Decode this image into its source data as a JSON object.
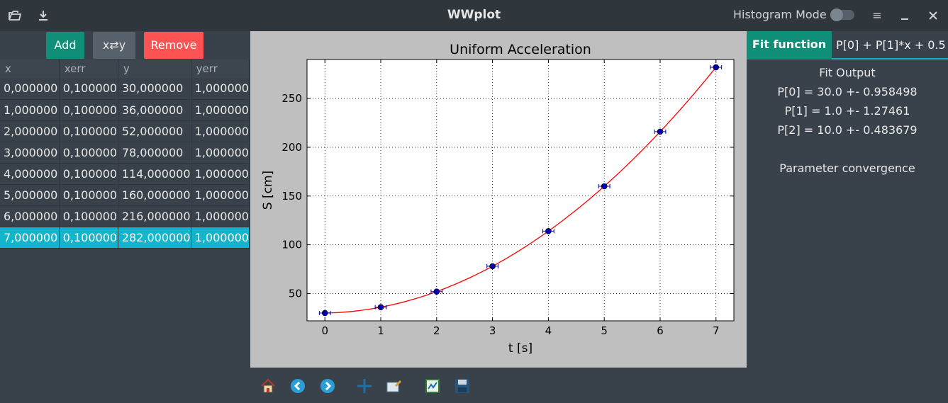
{
  "app": {
    "title": "WWplot",
    "histogram_label": "Histogram Mode"
  },
  "titlebar": {
    "open_icon": "open-icon",
    "download_icon": "download-icon",
    "menu_glyph": "≡",
    "minimize_glyph": "—",
    "close_glyph": "✕"
  },
  "table_actions": {
    "add_label": "Add",
    "swap_label": "x⇄y",
    "remove_label": "Remove"
  },
  "table": {
    "headers": [
      "x",
      "xerr",
      "y",
      "yerr"
    ],
    "rows": [
      [
        "0,000000",
        "0,100000",
        "30,000000",
        "1,000000"
      ],
      [
        "1,000000",
        "0,100000",
        "36,000000",
        "1,000000"
      ],
      [
        "2,000000",
        "0,100000",
        "52,000000",
        "1,000000"
      ],
      [
        "3,000000",
        "0,100000",
        "78,000000",
        "1,000000"
      ],
      [
        "4,000000",
        "0,100000",
        "114,000000",
        "1,000000"
      ],
      [
        "5,000000",
        "0,100000",
        "160,000000",
        "1,000000"
      ],
      [
        "6,000000",
        "0,100000",
        "216,000000",
        "1,000000"
      ],
      [
        "7,000000",
        "0,100000",
        "282,000000",
        "1,000000"
      ]
    ],
    "selected_row": 7
  },
  "fit": {
    "tab_label": "Fit function",
    "function_value": "P[0] + P[1]*x + 0.5",
    "output_title": "Fit Output",
    "params": [
      "P[0] = 30.0 +- 0.958498",
      "P[1] = 1.0 +- 1.27461",
      "P[2] = 10.0 +- 0.483679"
    ],
    "convergence": "Parameter convergence"
  },
  "chart_data": {
    "type": "scatter",
    "title": "Uniform Acceleration",
    "xlabel": "t [s]",
    "ylabel": "S [cm]",
    "x": [
      0,
      1,
      2,
      3,
      4,
      5,
      6,
      7
    ],
    "y": [
      30,
      36,
      52,
      78,
      114,
      160,
      216,
      282
    ],
    "xerr": [
      0.1,
      0.1,
      0.1,
      0.1,
      0.1,
      0.1,
      0.1,
      0.1
    ],
    "yerr": [
      1,
      1,
      1,
      1,
      1,
      1,
      1,
      1
    ],
    "xlim": [
      -0.32,
      7.32
    ],
    "ylim": [
      22,
      290
    ],
    "xticks": [
      0,
      1,
      2,
      3,
      4,
      5,
      6,
      7
    ],
    "yticks": [
      50,
      100,
      150,
      200,
      250
    ],
    "grid": true,
    "fit_line": {
      "p0": 30.0,
      "p1": 1.0,
      "p2": 10.0,
      "color": "#ff0000"
    },
    "marker_color": "#0000aa"
  },
  "toolbar_icons": [
    "home-icon",
    "back-icon",
    "forward-icon",
    "pan-icon",
    "zoom-icon",
    "configure-icon",
    "save-icon"
  ],
  "colors": {
    "accent": "#0f8e78",
    "selection": "#12b5cb",
    "remove": "#ff5252"
  }
}
